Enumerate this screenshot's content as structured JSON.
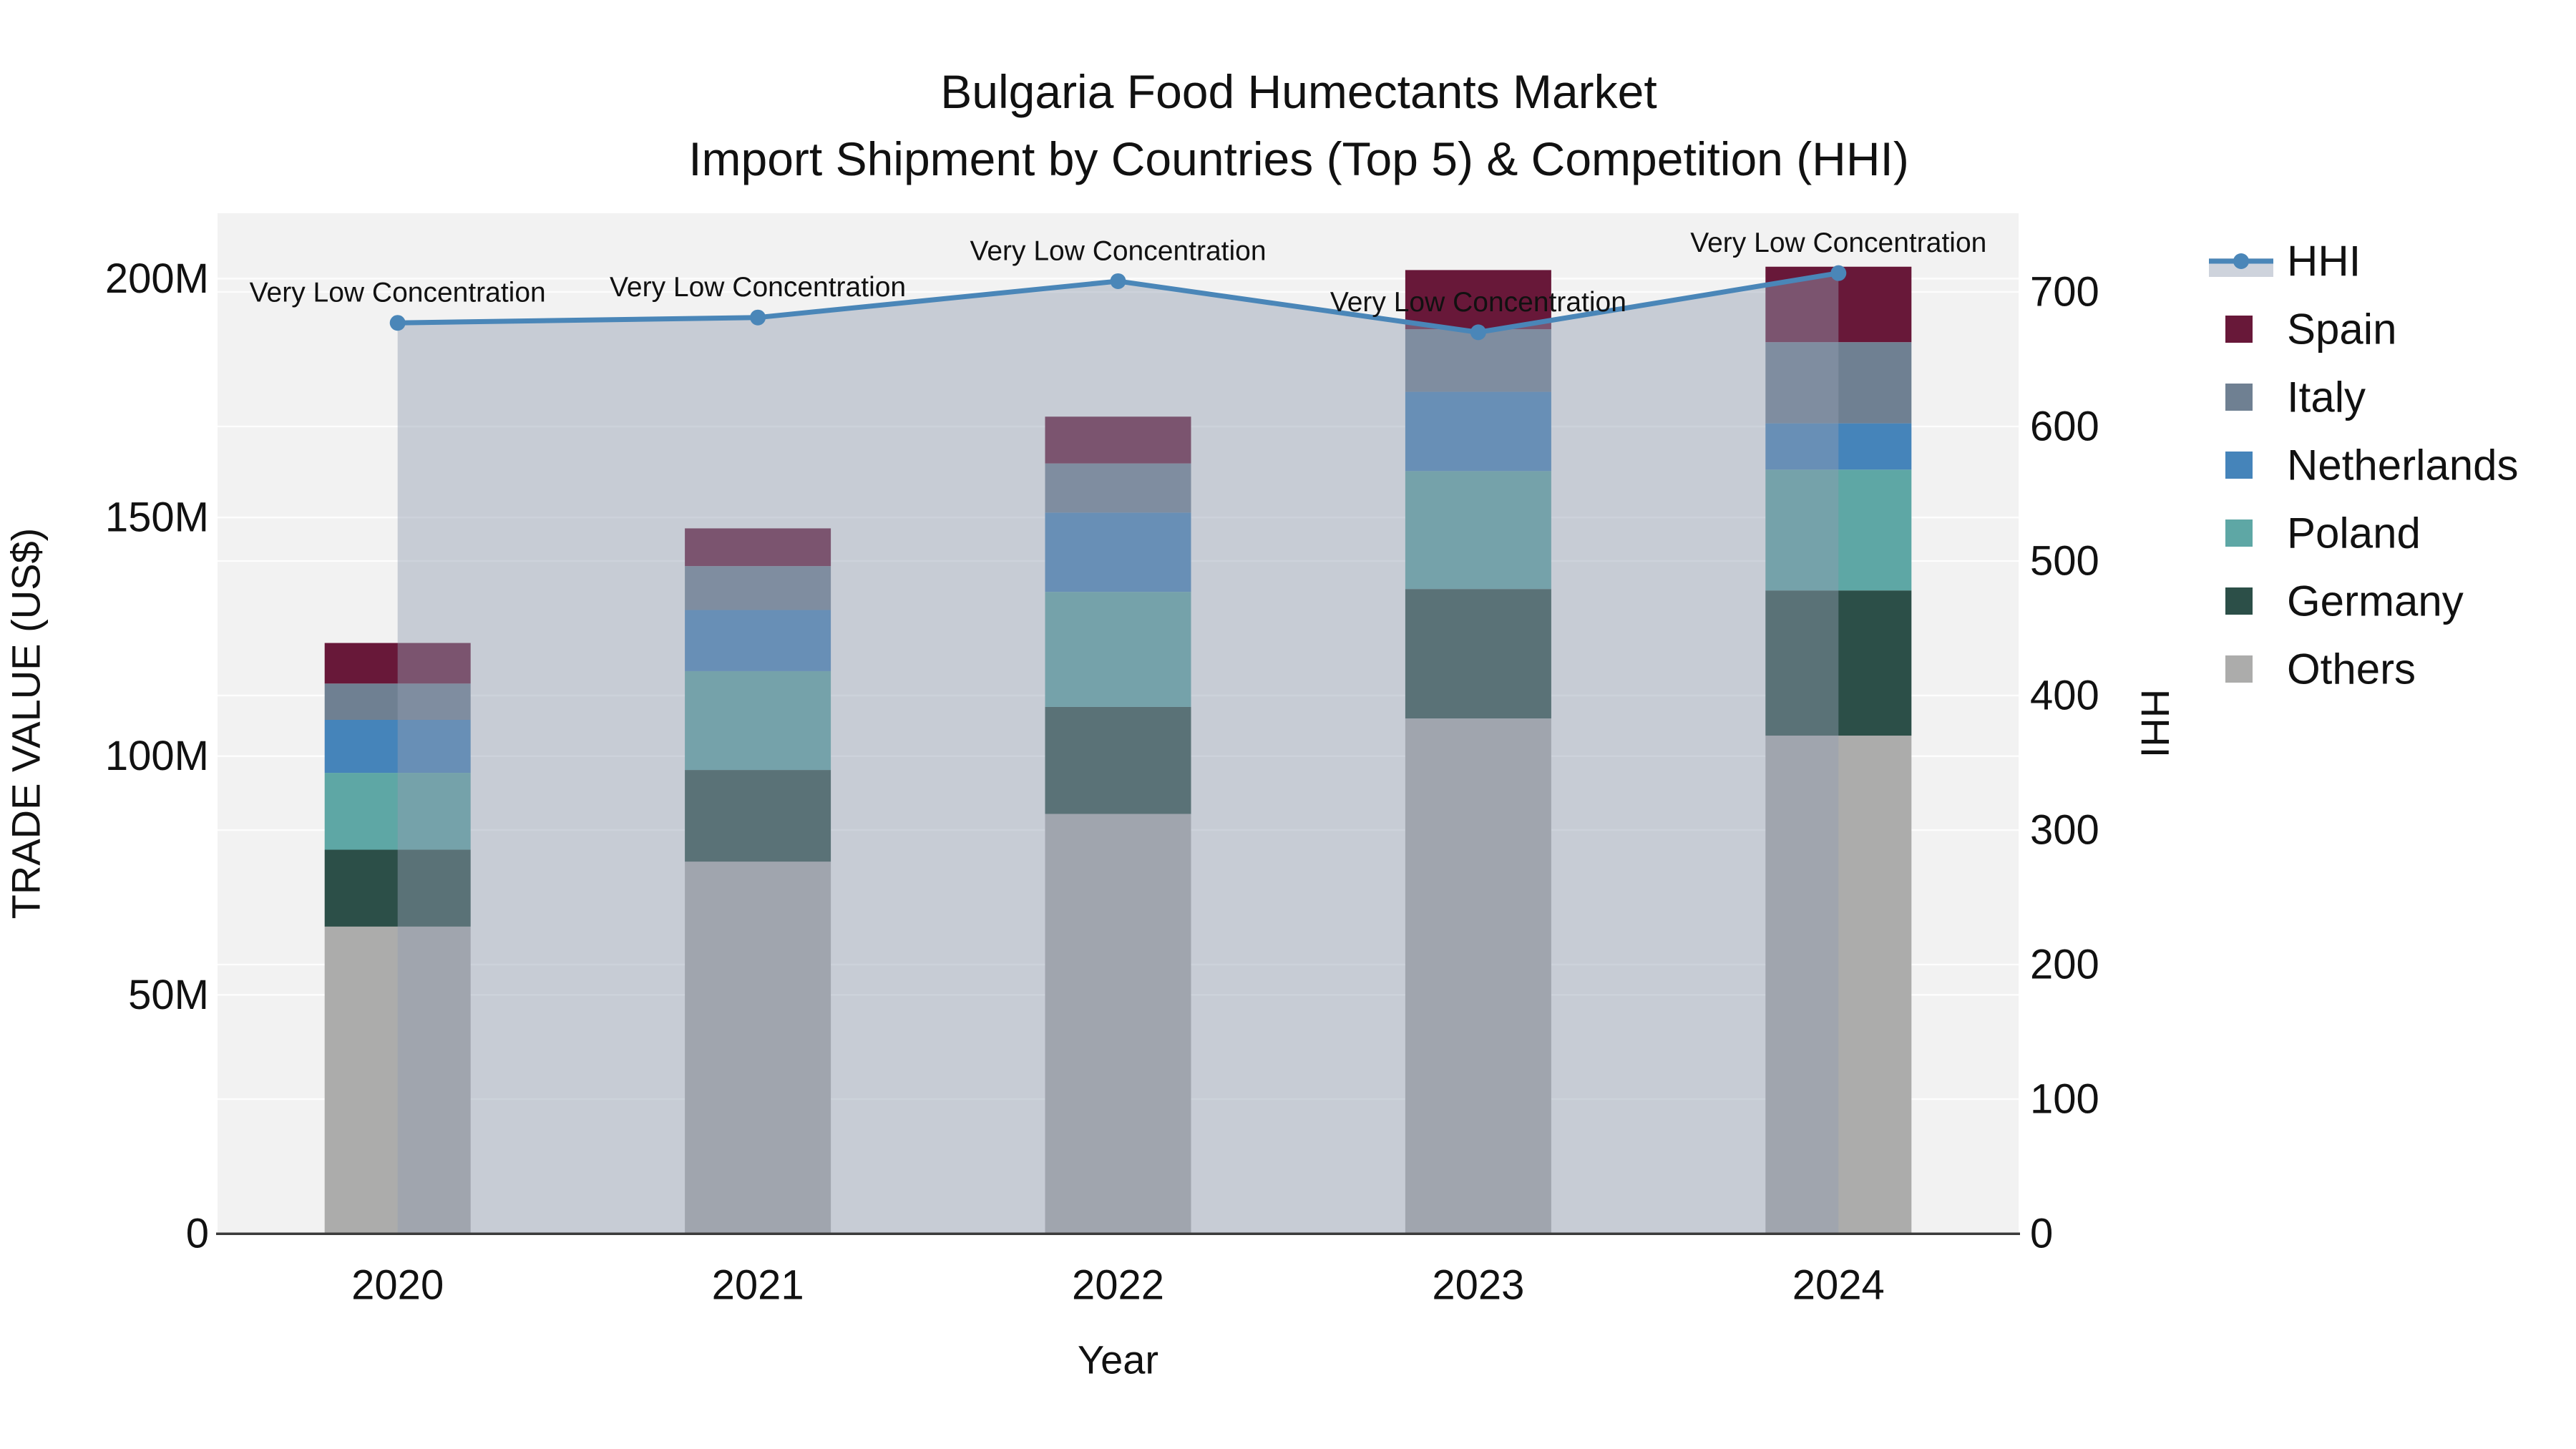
{
  "title": {
    "line1": "Bulgaria Food Humectants Market",
    "line2": "Import Shipment by Countries (Top 5) & Competition (HHI)"
  },
  "axes": {
    "x": {
      "title": "Year"
    },
    "y_left": {
      "title": "TRADE VALUE (US$)",
      "tick_labels": [
        "0",
        "50M",
        "100M",
        "150M",
        "200M"
      ],
      "tick_values": [
        0,
        50,
        100,
        150,
        200
      ]
    },
    "y_right": {
      "title": "HHI",
      "tick_labels": [
        "0",
        "100",
        "200",
        "300",
        "400",
        "500",
        "600",
        "700"
      ],
      "tick_values": [
        0,
        100,
        200,
        300,
        400,
        500,
        600,
        700
      ]
    }
  },
  "legend": {
    "items": [
      {
        "label": "HHI",
        "type": "line",
        "color": "#4A86B8",
        "band_color": "#CED3DC"
      },
      {
        "label": "Spain",
        "type": "square",
        "color": "#681839"
      },
      {
        "label": "Italy",
        "type": "square",
        "color": "#6F8092"
      },
      {
        "label": "Netherlands",
        "type": "square",
        "color": "#4584BA"
      },
      {
        "label": "Poland",
        "type": "square",
        "color": "#5EA7A5"
      },
      {
        "label": "Germany",
        "type": "square",
        "color": "#2C4F48"
      },
      {
        "label": "Others",
        "type": "square",
        "color": "#ACACAB"
      }
    ]
  },
  "chart_data": {
    "type": "bar",
    "subtype": "stacked-bars-with-line-overlay",
    "title": "Bulgaria Food Humectants Market — Import Shipment by Countries (Top 5) & Competition (HHI)",
    "xlabel": "Year",
    "ylabel_left": "TRADE VALUE (US$)",
    "ylabel_right": "HHI",
    "categories": [
      "2020",
      "2021",
      "2022",
      "2023",
      "2024"
    ],
    "bar_unit": "US$ millions (estimated from axis)",
    "stack_order_bottom_to_top": [
      "Others",
      "Germany",
      "Poland",
      "Netherlands",
      "Italy",
      "Spain"
    ],
    "series": [
      {
        "name": "Others",
        "color": "#ACACAB",
        "values": [
          64.3,
          77.9,
          87.9,
          107.9,
          104.3
        ]
      },
      {
        "name": "Germany",
        "color": "#2C4F48",
        "values": [
          16.1,
          19.2,
          22.4,
          27.1,
          30.4
        ]
      },
      {
        "name": "Poland",
        "color": "#5EA7A5",
        "values": [
          16.1,
          20.7,
          24.1,
          24.7,
          25.3
        ]
      },
      {
        "name": "Netherlands",
        "color": "#4584BA",
        "values": [
          11.1,
          12.8,
          16.6,
          16.6,
          9.7
        ]
      },
      {
        "name": "Italy",
        "color": "#6F8092",
        "values": [
          7.6,
          9.2,
          10.3,
          13.1,
          17.0
        ]
      },
      {
        "name": "Spain",
        "color": "#681839",
        "values": [
          8.5,
          7.9,
          9.8,
          12.4,
          15.8
        ]
      }
    ],
    "bar_totals": [
      123.7,
      147.7,
      171.1,
      201.8,
      202.5
    ],
    "line": {
      "name": "HHI",
      "axis": "right",
      "color": "#4A86B8",
      "fill_to_zero": true,
      "fill_color_rgba": "rgba(147,158,178,0.45)",
      "values": [
        677,
        681,
        708,
        670,
        714
      ],
      "annotations": [
        "Very Low Concentration",
        "Very Low Concentration",
        "Very Low Concentration",
        "Very Low Concentration",
        "Very Low Concentration"
      ]
    },
    "ylim_left": [
      0,
      213.7
    ],
    "ylim_right": [
      0,
      758.5
    ],
    "grid": "horizontal gridlines at both axes tick positions, white on light-gray plot background",
    "legend_position": "right, outside plot area",
    "plot_bg": "#F2F2F2",
    "axis_line_color": "#3B3B3B"
  }
}
